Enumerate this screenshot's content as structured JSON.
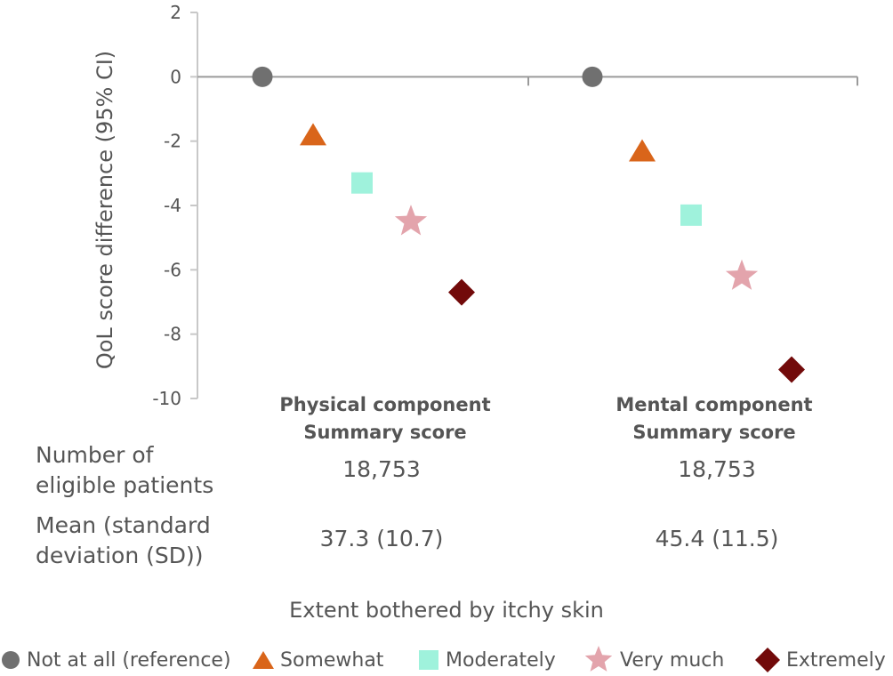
{
  "chart_data": {
    "type": "scatter",
    "ylabel": "QoL score difference (95% CI)",
    "xlabel": "Extent bothered by itchy skin",
    "ylim": [
      -10,
      2
    ],
    "yticks": [
      2,
      0,
      -2,
      -4,
      -6,
      -8,
      -10
    ],
    "yticklabels": [
      "2",
      "0",
      "-2",
      "-4",
      "-6",
      "-8",
      "-10"
    ],
    "groups": [
      {
        "title_line1": "Physical component",
        "title_line2": "Summary score",
        "n": "18,753",
        "mean_sd": "37.3 (10.7)"
      },
      {
        "title_line1": "Mental component",
        "title_line2": "Summary score",
        "n": "18,753",
        "mean_sd": "45.4 (11.5)"
      }
    ],
    "series": [
      {
        "name": "Not at all (reference)",
        "marker": "circle",
        "color": "#707070",
        "values": [
          0,
          0
        ]
      },
      {
        "name": "Somewhat",
        "marker": "triangle",
        "color": "#d9651a",
        "values": [
          -1.8,
          -2.3
        ]
      },
      {
        "name": "Moderately",
        "marker": "square",
        "color": "#9ff2dc",
        "values": [
          -3.3,
          -4.3
        ]
      },
      {
        "name": "Very much",
        "marker": "star",
        "color": "#e3a4ac",
        "values": [
          -4.5,
          -6.2
        ]
      },
      {
        "name": "Extremely",
        "marker": "diamond",
        "color": "#720a0a",
        "values": [
          -6.7,
          -9.1
        ]
      }
    ],
    "legend_position": "bottom",
    "grid": false
  },
  "table": {
    "row1_label_line1": "Number of",
    "row1_label_line2": "eligible patients",
    "row2_label_line1": "Mean (standard",
    "row2_label_line2": "deviation (SD))"
  }
}
